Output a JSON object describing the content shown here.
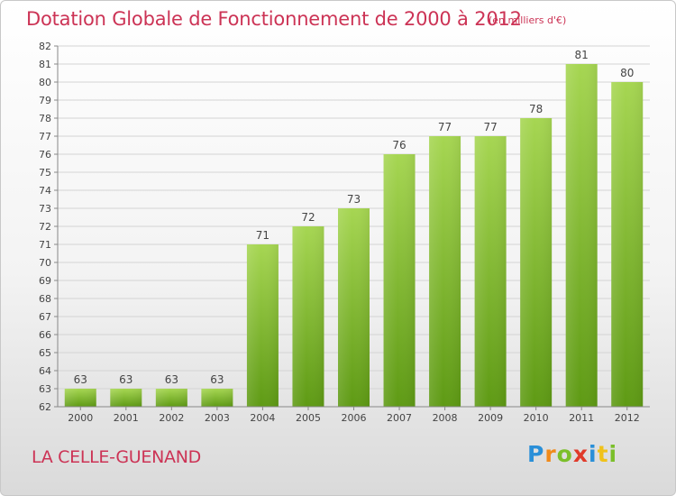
{
  "header": {
    "title": "Dotation Globale de Fonctionnement de 2000 à 2012",
    "unit": "(en milliers d'€)"
  },
  "footer": {
    "commune": "LA CELLE-GUENAND",
    "logo_letters": [
      "P",
      "r",
      "o",
      "x",
      "i",
      "t",
      "i"
    ],
    "logo_colors": [
      "#2a8fd8",
      "#f08a1a",
      "#7bbf2a",
      "#e03a2a",
      "#2a8fd8",
      "#f0c21a",
      "#7bbf2a"
    ]
  },
  "chart_data": {
    "type": "bar",
    "categories": [
      "2000",
      "2001",
      "2002",
      "2003",
      "2004",
      "2005",
      "2006",
      "2007",
      "2008",
      "2009",
      "2010",
      "2011",
      "2012"
    ],
    "values": [
      63,
      63,
      63,
      63,
      71,
      72,
      73,
      76,
      77,
      77,
      78,
      81,
      80
    ],
    "data_labels": [
      "63",
      "63",
      "63",
      "63",
      "71",
      "72",
      "73",
      "76",
      "77",
      "77",
      "78",
      "81",
      "80"
    ],
    "yticks": [
      "62",
      "63",
      "64",
      "65",
      "66",
      "67",
      "68",
      "69",
      "70",
      "71",
      "72",
      "73",
      "74",
      "75",
      "76",
      "77",
      "78",
      "79",
      "80",
      "81",
      "82"
    ],
    "ylim": [
      62,
      82
    ],
    "grid": true,
    "colors": {
      "bar_light": "#a6d652",
      "bar_dark": "#5e9a14",
      "grid": "#d4d4d4",
      "axis": "#888888",
      "text": "#444444"
    }
  }
}
